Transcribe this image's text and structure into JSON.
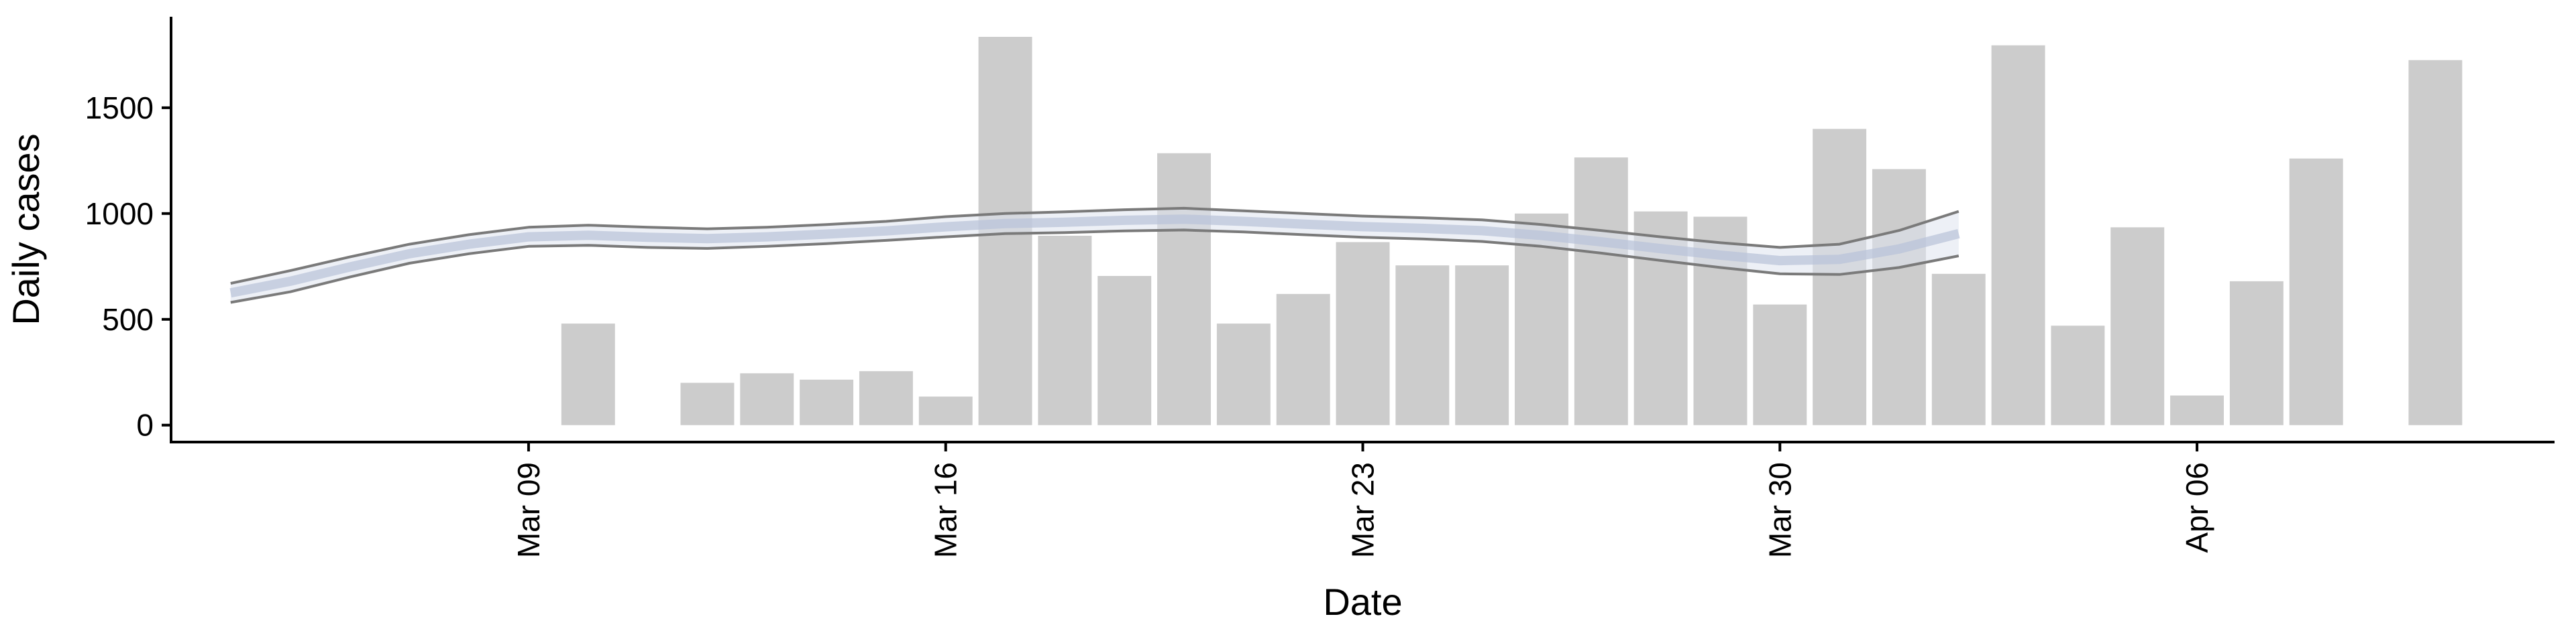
{
  "chart_data": {
    "type": "bar",
    "xlabel": "Date",
    "ylabel": "Daily cases",
    "x_axis": {
      "type": "date",
      "range": [
        "2020-03-03",
        "2020-04-12"
      ]
    },
    "ylim": [
      -80,
      1930
    ],
    "grid": false,
    "legend": "none",
    "yticks": [
      0,
      500,
      1000,
      1500
    ],
    "xticks": [
      {
        "date": "2020-03-09",
        "label": "Mar 09"
      },
      {
        "date": "2020-03-16",
        "label": "Mar 16"
      },
      {
        "date": "2020-03-23",
        "label": "Mar 23"
      },
      {
        "date": "2020-03-30",
        "label": "Mar 30"
      },
      {
        "date": "2020-04-06",
        "label": "Apr 06"
      }
    ],
    "bars": [
      {
        "date": "2020-03-10",
        "value": 480
      },
      {
        "date": "2020-03-12",
        "value": 200
      },
      {
        "date": "2020-03-13",
        "value": 245
      },
      {
        "date": "2020-03-14",
        "value": 215
      },
      {
        "date": "2020-03-15",
        "value": 255
      },
      {
        "date": "2020-03-16",
        "value": 135
      },
      {
        "date": "2020-03-17",
        "value": 1835
      },
      {
        "date": "2020-03-18",
        "value": 895
      },
      {
        "date": "2020-03-19",
        "value": 705
      },
      {
        "date": "2020-03-20",
        "value": 1285
      },
      {
        "date": "2020-03-21",
        "value": 480
      },
      {
        "date": "2020-03-22",
        "value": 620
      },
      {
        "date": "2020-03-23",
        "value": 865
      },
      {
        "date": "2020-03-24",
        "value": 755
      },
      {
        "date": "2020-03-25",
        "value": 755
      },
      {
        "date": "2020-03-26",
        "value": 1000
      },
      {
        "date": "2020-03-27",
        "value": 1265
      },
      {
        "date": "2020-03-28",
        "value": 1010
      },
      {
        "date": "2020-03-29",
        "value": 985
      },
      {
        "date": "2020-03-30",
        "value": 570
      },
      {
        "date": "2020-03-31",
        "value": 1400
      },
      {
        "date": "2020-04-01",
        "value": 1210
      },
      {
        "date": "2020-04-02",
        "value": 715
      },
      {
        "date": "2020-04-03",
        "value": 1795
      },
      {
        "date": "2020-04-04",
        "value": 470
      },
      {
        "date": "2020-04-05",
        "value": 935
      },
      {
        "date": "2020-04-06",
        "value": 140
      },
      {
        "date": "2020-04-07",
        "value": 680
      },
      {
        "date": "2020-04-08",
        "value": 1260
      },
      {
        "date": "2020-04-10",
        "value": 1725
      }
    ],
    "ribbon": [
      {
        "date": "2020-03-04",
        "lower": 580,
        "upper": 670
      },
      {
        "date": "2020-03-05",
        "lower": 630,
        "upper": 730
      },
      {
        "date": "2020-03-06",
        "lower": 700,
        "upper": 795
      },
      {
        "date": "2020-03-07",
        "lower": 765,
        "upper": 855
      },
      {
        "date": "2020-03-08",
        "lower": 810,
        "upper": 900
      },
      {
        "date": "2020-03-09",
        "lower": 845,
        "upper": 935
      },
      {
        "date": "2020-03-10",
        "lower": 850,
        "upper": 945
      },
      {
        "date": "2020-03-11",
        "lower": 840,
        "upper": 935
      },
      {
        "date": "2020-03-12",
        "lower": 835,
        "upper": 928
      },
      {
        "date": "2020-03-13",
        "lower": 845,
        "upper": 935
      },
      {
        "date": "2020-03-14",
        "lower": 858,
        "upper": 948
      },
      {
        "date": "2020-03-15",
        "lower": 873,
        "upper": 963
      },
      {
        "date": "2020-03-16",
        "lower": 890,
        "upper": 985
      },
      {
        "date": "2020-03-17",
        "lower": 905,
        "upper": 1000
      },
      {
        "date": "2020-03-18",
        "lower": 910,
        "upper": 1008
      },
      {
        "date": "2020-03-19",
        "lower": 918,
        "upper": 1018
      },
      {
        "date": "2020-03-20",
        "lower": 922,
        "upper": 1025
      },
      {
        "date": "2020-03-21",
        "lower": 913,
        "upper": 1013
      },
      {
        "date": "2020-03-22",
        "lower": 900,
        "upper": 1000
      },
      {
        "date": "2020-03-23",
        "lower": 888,
        "upper": 988
      },
      {
        "date": "2020-03-24",
        "lower": 880,
        "upper": 980
      },
      {
        "date": "2020-03-25",
        "lower": 868,
        "upper": 970
      },
      {
        "date": "2020-03-26",
        "lower": 845,
        "upper": 948
      },
      {
        "date": "2020-03-27",
        "lower": 813,
        "upper": 920
      },
      {
        "date": "2020-03-28",
        "lower": 778,
        "upper": 890
      },
      {
        "date": "2020-03-29",
        "lower": 745,
        "upper": 862
      },
      {
        "date": "2020-03-30",
        "lower": 715,
        "upper": 840
      },
      {
        "date": "2020-03-31",
        "lower": 712,
        "upper": 855
      },
      {
        "date": "2020-04-01",
        "lower": 745,
        "upper": 920
      },
      {
        "date": "2020-04-02",
        "lower": 800,
        "upper": 1010
      }
    ],
    "colors": {
      "bar": "#cccccc",
      "ribbon_line": "#7a7a7a",
      "band_fill": "#b8c2d8",
      "axis": "#000000"
    }
  }
}
